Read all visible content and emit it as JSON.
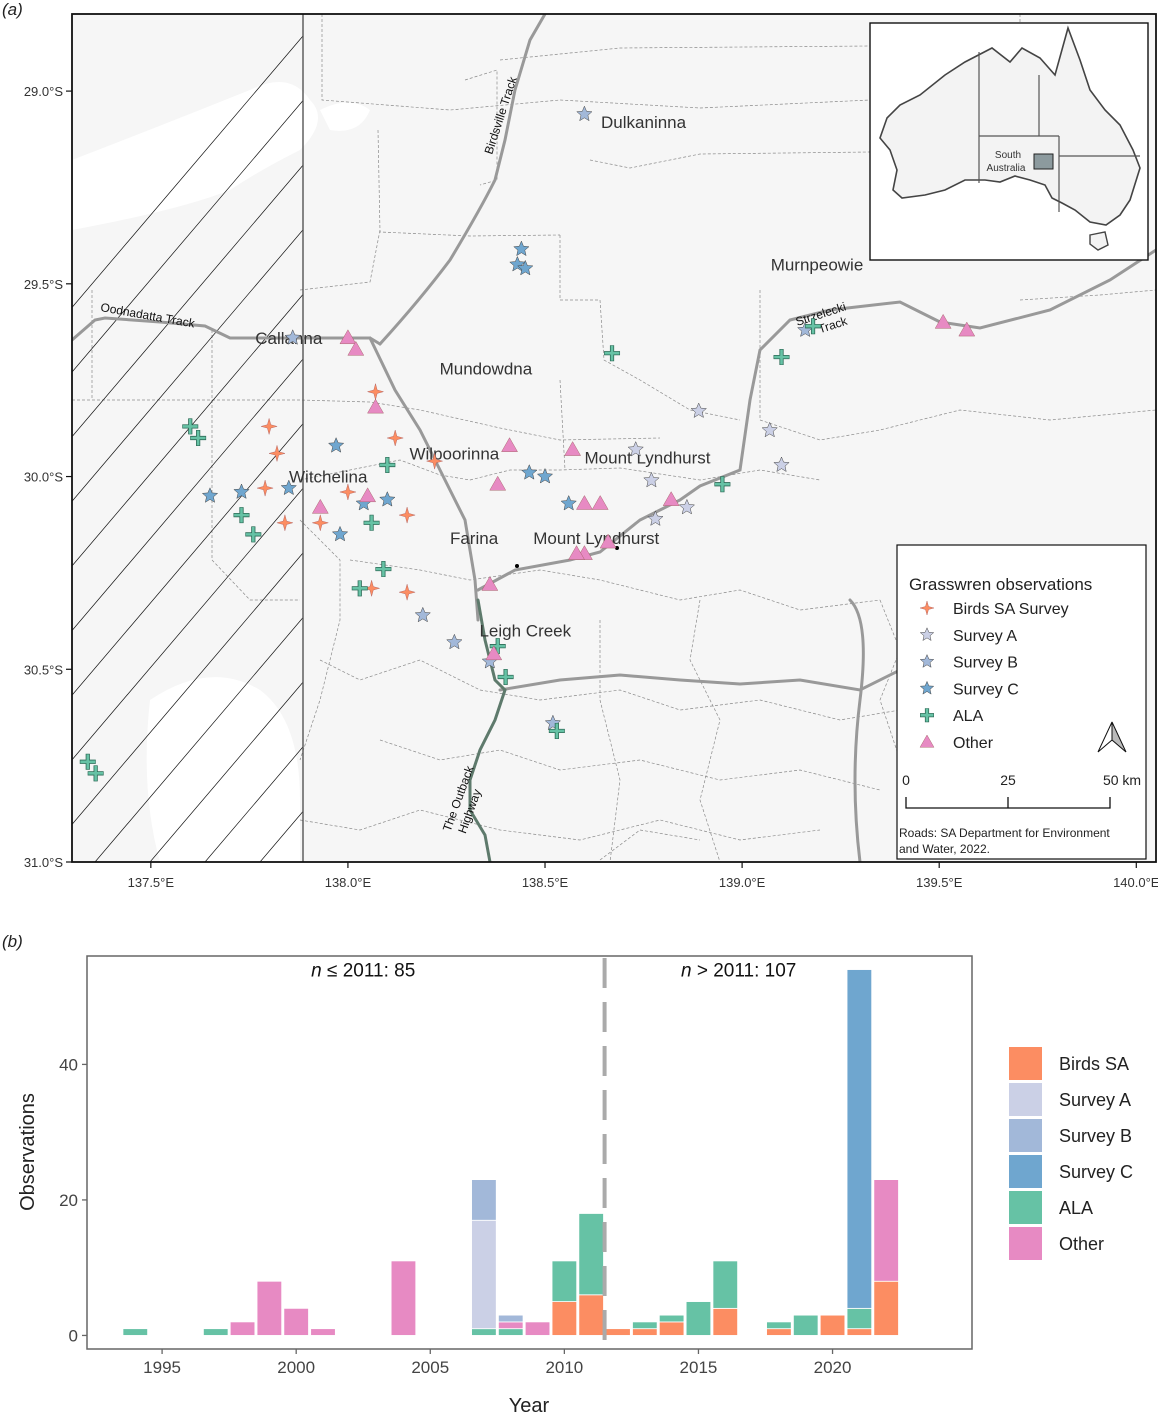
{
  "panel_a_label": "(a)",
  "panel_b_label": "(b)",
  "chart_data": [
    {
      "type": "scatter",
      "subtype": "map",
      "title": "",
      "x_ticks": [
        "137.5°E",
        "138.0°E",
        "138.5°E",
        "139.0°E",
        "139.5°E",
        "140.0°E"
      ],
      "x_tick_values": [
        137.5,
        138.0,
        138.5,
        139.0,
        139.5,
        140.0
      ],
      "y_ticks": [
        "29.0°S",
        "29.5°S",
        "30.0°S",
        "30.5°S",
        "31.0°S"
      ],
      "y_tick_values": [
        -29.0,
        -29.5,
        -30.0,
        -30.5,
        -31.0
      ],
      "xlim": [
        137.3,
        140.05
      ],
      "ylim": [
        -31.0,
        -28.8
      ],
      "hatched_region_lon_max": 137.9,
      "place_labels": [
        {
          "name": "Dulkaninna",
          "lon": 138.75,
          "lat": -29.08
        },
        {
          "name": "Murnpeowie",
          "lon": 139.19,
          "lat": -29.45
        },
        {
          "name": "Callanna",
          "lon": 137.85,
          "lat": -29.64
        },
        {
          "name": "Mundowdna",
          "lon": 138.35,
          "lat": -29.72
        },
        {
          "name": "Wilpoorinna",
          "lon": 138.27,
          "lat": -29.94
        },
        {
          "name": "Mount Lyndhurst",
          "lon": 138.76,
          "lat": -29.95
        },
        {
          "name": "Witchelina",
          "lon": 137.95,
          "lat": -30.0
        },
        {
          "name": "Farina",
          "lon": 138.32,
          "lat": -30.16
        },
        {
          "name": "Mount Lyndhurst",
          "lon": 138.63,
          "lat": -30.16
        },
        {
          "name": "Leigh Creek",
          "lon": 138.45,
          "lat": -30.4
        }
      ],
      "road_labels": [
        "Oodnadatta Track",
        "Birdsville Track",
        "Strzelecki Track",
        "The Outback Highway"
      ],
      "legend": {
        "title": "Grasswren observations",
        "entries": [
          {
            "name": "Birds SA Survey",
            "symbol": "sparkle-icon",
            "color": "#fc8d62"
          },
          {
            "name": "Survey A",
            "symbol": "star-icon",
            "color": "#cbd0e6"
          },
          {
            "name": "Survey B",
            "symbol": "star-icon",
            "color": "#a2b8d9"
          },
          {
            "name": "Survey C",
            "symbol": "star-icon",
            "color": "#6fa6cf"
          },
          {
            "name": "ALA",
            "symbol": "plus-icon",
            "color": "#66c2a5"
          },
          {
            "name": "Other",
            "symbol": "triangle-icon",
            "color": "#e78ac3"
          }
        ]
      },
      "scale_bar": {
        "labels": [
          "0",
          "25",
          "50 km"
        ]
      },
      "north_arrow": "north-arrow-icon",
      "credit": "Roads: SA Department for Environment and Water, 2022.",
      "inset": {
        "label": "South Australia"
      },
      "points": [
        {
          "g": "Survey A",
          "lon": 138.89,
          "lat": -29.83
        },
        {
          "g": "Survey A",
          "lon": 139.07,
          "lat": -29.88
        },
        {
          "g": "Survey A",
          "lon": 139.1,
          "lat": -29.97
        },
        {
          "g": "Survey A",
          "lon": 138.77,
          "lat": -30.01
        },
        {
          "g": "Survey A",
          "lon": 138.73,
          "lat": -29.93
        },
        {
          "g": "Survey A",
          "lon": 138.78,
          "lat": -30.11
        },
        {
          "g": "Survey A",
          "lon": 138.86,
          "lat": -30.08
        },
        {
          "g": "Survey B",
          "lon": 138.6,
          "lat": -29.06
        },
        {
          "g": "Survey B",
          "lon": 137.86,
          "lat": -29.64
        },
        {
          "g": "Survey B",
          "lon": 139.16,
          "lat": -29.62
        },
        {
          "g": "Survey B",
          "lon": 138.19,
          "lat": -30.36
        },
        {
          "g": "Survey B",
          "lon": 138.27,
          "lat": -30.43
        },
        {
          "g": "Survey B",
          "lon": 138.36,
          "lat": -30.48
        },
        {
          "g": "Survey B",
          "lon": 138.52,
          "lat": -30.64
        },
        {
          "g": "Survey C",
          "lon": 138.44,
          "lat": -29.41
        },
        {
          "g": "Survey C",
          "lon": 138.43,
          "lat": -29.45
        },
        {
          "g": "Survey C",
          "lon": 138.45,
          "lat": -29.46
        },
        {
          "g": "Survey C",
          "lon": 137.65,
          "lat": -30.05
        },
        {
          "g": "Survey C",
          "lon": 137.73,
          "lat": -30.04
        },
        {
          "g": "Survey C",
          "lon": 137.97,
          "lat": -29.92
        },
        {
          "g": "Survey C",
          "lon": 138.04,
          "lat": -30.07
        },
        {
          "g": "Survey C",
          "lon": 138.1,
          "lat": -30.06
        },
        {
          "g": "Survey C",
          "lon": 137.98,
          "lat": -30.15
        },
        {
          "g": "Survey C",
          "lon": 138.46,
          "lat": -29.99
        },
        {
          "g": "Survey C",
          "lon": 138.5,
          "lat": -30.0
        },
        {
          "g": "Survey C",
          "lon": 138.56,
          "lat": -30.07
        },
        {
          "g": "Survey C",
          "lon": 137.85,
          "lat": -30.03
        },
        {
          "g": "Birds SA Survey",
          "lon": 137.8,
          "lat": -29.87
        },
        {
          "g": "Birds SA Survey",
          "lon": 137.82,
          "lat": -29.94
        },
        {
          "g": "Birds SA Survey",
          "lon": 137.79,
          "lat": -30.03
        },
        {
          "g": "Birds SA Survey",
          "lon": 137.84,
          "lat": -30.12
        },
        {
          "g": "Birds SA Survey",
          "lon": 138.07,
          "lat": -29.78
        },
        {
          "g": "Birds SA Survey",
          "lon": 138.12,
          "lat": -29.9
        },
        {
          "g": "Birds SA Survey",
          "lon": 138.0,
          "lat": -30.04
        },
        {
          "g": "Birds SA Survey",
          "lon": 137.93,
          "lat": -30.12
        },
        {
          "g": "Birds SA Survey",
          "lon": 138.15,
          "lat": -30.1
        },
        {
          "g": "Birds SA Survey",
          "lon": 138.06,
          "lat": -30.29
        },
        {
          "g": "Birds SA Survey",
          "lon": 138.15,
          "lat": -30.3
        },
        {
          "g": "Birds SA Survey",
          "lon": 138.22,
          "lat": -29.96
        },
        {
          "g": "ALA",
          "lon": 137.6,
          "lat": -29.87
        },
        {
          "g": "ALA",
          "lon": 137.62,
          "lat": -29.9
        },
        {
          "g": "ALA",
          "lon": 137.73,
          "lat": -30.1
        },
        {
          "g": "ALA",
          "lon": 137.76,
          "lat": -30.15
        },
        {
          "g": "ALA",
          "lon": 137.34,
          "lat": -30.74
        },
        {
          "g": "ALA",
          "lon": 137.36,
          "lat": -30.77
        },
        {
          "g": "ALA",
          "lon": 138.1,
          "lat": -29.97
        },
        {
          "g": "ALA",
          "lon": 138.06,
          "lat": -30.12
        },
        {
          "g": "ALA",
          "lon": 138.03,
          "lat": -30.29
        },
        {
          "g": "ALA",
          "lon": 138.09,
          "lat": -30.24
        },
        {
          "g": "ALA",
          "lon": 138.67,
          "lat": -29.68
        },
        {
          "g": "ALA",
          "lon": 139.18,
          "lat": -29.61
        },
        {
          "g": "ALA",
          "lon": 139.1,
          "lat": -29.69
        },
        {
          "g": "ALA",
          "lon": 138.95,
          "lat": -30.02
        },
        {
          "g": "ALA",
          "lon": 138.38,
          "lat": -30.44
        },
        {
          "g": "ALA",
          "lon": 138.4,
          "lat": -30.52
        },
        {
          "g": "ALA",
          "lon": 138.53,
          "lat": -30.66
        },
        {
          "g": "Other",
          "lon": 138.0,
          "lat": -29.64
        },
        {
          "g": "Other",
          "lon": 138.02,
          "lat": -29.67
        },
        {
          "g": "Other",
          "lon": 138.07,
          "lat": -29.82
        },
        {
          "g": "Other",
          "lon": 138.41,
          "lat": -29.92
        },
        {
          "g": "Other",
          "lon": 138.38,
          "lat": -30.02
        },
        {
          "g": "Other",
          "lon": 138.57,
          "lat": -29.93
        },
        {
          "g": "Other",
          "lon": 138.6,
          "lat": -30.07
        },
        {
          "g": "Other",
          "lon": 138.64,
          "lat": -30.07
        },
        {
          "g": "Other",
          "lon": 138.6,
          "lat": -30.2
        },
        {
          "g": "Other",
          "lon": 138.58,
          "lat": -30.2
        },
        {
          "g": "Other",
          "lon": 138.66,
          "lat": -30.17
        },
        {
          "g": "Other",
          "lon": 138.36,
          "lat": -30.28
        },
        {
          "g": "Other",
          "lon": 138.37,
          "lat": -30.46
        },
        {
          "g": "Other",
          "lon": 139.51,
          "lat": -29.6
        },
        {
          "g": "Other",
          "lon": 139.57,
          "lat": -29.62
        },
        {
          "g": "Other",
          "lon": 137.93,
          "lat": -30.08
        },
        {
          "g": "Other",
          "lon": 138.05,
          "lat": -30.05
        },
        {
          "g": "Other",
          "lon": 138.82,
          "lat": -30.06
        }
      ]
    },
    {
      "type": "bar",
      "stacked": true,
      "title": "",
      "xlabel": "Year",
      "ylabel": "Observations",
      "xlim": [
        1992.2,
        2025.2
      ],
      "ylim": [
        -2,
        56
      ],
      "x_ticks": [
        1995,
        2000,
        2005,
        2010,
        2015,
        2020
      ],
      "y_ticks": [
        0,
        20,
        40
      ],
      "divider_year": 2011.5,
      "annotations": [
        {
          "text_prefix": "n",
          "text": " ≤ 2011: 85",
          "year": 2002.5,
          "value": 53
        },
        {
          "text_prefix": "n",
          "text": " > 2011: 107",
          "year": 2016.5,
          "value": 53
        }
      ],
      "categories": [
        1994,
        1997,
        1998,
        1999,
        2000,
        2001,
        2004,
        2007,
        2008,
        2009,
        2010,
        2011,
        2012,
        2013,
        2014,
        2015,
        2016,
        2018,
        2019,
        2020,
        2021,
        2022
      ],
      "series": [
        {
          "name": "Birds SA",
          "color": "#fc8d62",
          "values": [
            0,
            0,
            0,
            0,
            0,
            0,
            0,
            0,
            0,
            0,
            5,
            6,
            1,
            1,
            2,
            0,
            4,
            1,
            0,
            3,
            1,
            8
          ]
        },
        {
          "name": "ALA",
          "color": "#66c2a5",
          "values": [
            1,
            1,
            0,
            0,
            0,
            0,
            0,
            1,
            1,
            0,
            6,
            12,
            0,
            1,
            1,
            5,
            7,
            1,
            3,
            0,
            3,
            0
          ]
        },
        {
          "name": "Other",
          "color": "#e78ac3",
          "values": [
            0,
            0,
            2,
            8,
            4,
            1,
            11,
            0,
            1,
            2,
            0,
            0,
            0,
            0,
            0,
            0,
            0,
            0,
            0,
            0,
            0,
            15
          ]
        },
        {
          "name": "Survey A",
          "color": "#cbd0e6",
          "values": [
            0,
            0,
            0,
            0,
            0,
            0,
            0,
            16,
            0,
            0,
            0,
            0,
            0,
            0,
            0,
            0,
            0,
            0,
            0,
            0,
            0,
            0
          ]
        },
        {
          "name": "Survey B",
          "color": "#a2b8d9",
          "values": [
            0,
            0,
            0,
            0,
            0,
            0,
            0,
            6,
            1,
            0,
            0,
            0,
            0,
            0,
            0,
            0,
            0,
            0,
            0,
            0,
            0,
            0
          ]
        },
        {
          "name": "Survey C",
          "color": "#6fa6cf",
          "values": [
            0,
            0,
            0,
            0,
            0,
            0,
            0,
            0,
            0,
            0,
            0,
            0,
            0,
            0,
            0,
            0,
            0,
            0,
            0,
            0,
            50,
            0
          ]
        }
      ],
      "legend": {
        "position": "right",
        "entries": [
          {
            "name": "Birds SA",
            "color": "#fc8d62"
          },
          {
            "name": "Survey A",
            "color": "#cbd0e6"
          },
          {
            "name": "Survey B",
            "color": "#a2b8d9"
          },
          {
            "name": "Survey C",
            "color": "#6fa6cf"
          },
          {
            "name": "ALA",
            "color": "#66c2a5"
          },
          {
            "name": "Other",
            "color": "#e78ac3"
          }
        ]
      }
    }
  ]
}
